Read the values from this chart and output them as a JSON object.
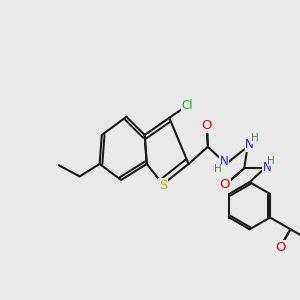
{
  "bg_color": "#e9e9e9",
  "bond_color": "#1a1a1a",
  "bond_width": 1.5,
  "atom_colors": {
    "Cl": "#00bb00",
    "S": "#bbbb00",
    "N": "#2222cc",
    "O": "#dd0000",
    "H": "#558855",
    "C": "#1a1a1a"
  },
  "fs": 8.5,
  "fs_small": 7.5
}
